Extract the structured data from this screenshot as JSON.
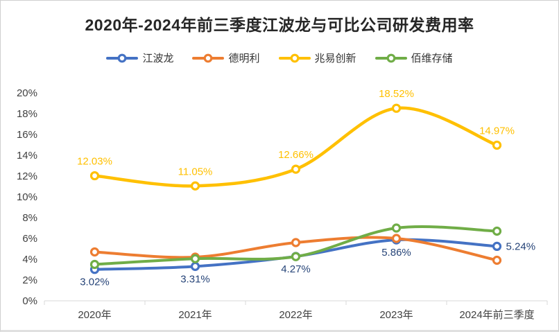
{
  "title": "2020年-2024年前三季度江波龙与可比公司研发费用率",
  "axis_color": "#d9d9d9",
  "chart_data": {
    "type": "line",
    "title": "2020年-2024年前三季度江波龙与可比公司研发费用率",
    "categories": [
      "2020年",
      "2021年",
      "2022年",
      "2023年",
      "2024年前三季度"
    ],
    "ylim": [
      0,
      20
    ],
    "y_ticks": [
      "0%",
      "2%",
      "4%",
      "6%",
      "8%",
      "10%",
      "12%",
      "14%",
      "16%",
      "18%",
      "20%"
    ],
    "grid": false,
    "legend_position": "top",
    "series": [
      {
        "name": "江波龙",
        "color": "#4472C4",
        "label_color": "#264478",
        "values": [
          3.02,
          3.31,
          4.27,
          5.86,
          5.24
        ],
        "labels": [
          "3.02%",
          "3.31%",
          "4.27%",
          "5.86%",
          "5.24%"
        ],
        "label_placement": [
          "below",
          "below",
          "below",
          "below",
          "right"
        ]
      },
      {
        "name": "德明利",
        "color": "#ED7D31",
        "label_color": null,
        "values": [
          4.7,
          4.2,
          5.6,
          6.0,
          3.9
        ],
        "labels": null,
        "label_placement": null
      },
      {
        "name": "兆易创新",
        "color": "#FFC000",
        "label_color": "#FFC000",
        "values": [
          12.03,
          11.05,
          12.66,
          18.52,
          14.97
        ],
        "labels": [
          "12.03%",
          "11.05%",
          "12.66%",
          "18.52%",
          "14.97%"
        ],
        "label_placement": [
          "above",
          "above",
          "above",
          "above",
          "above"
        ]
      },
      {
        "name": "佰维存储",
        "color": "#70AD47",
        "label_color": null,
        "values": [
          3.5,
          4.05,
          4.25,
          7.0,
          6.7
        ],
        "labels": null,
        "label_placement": null
      }
    ]
  }
}
